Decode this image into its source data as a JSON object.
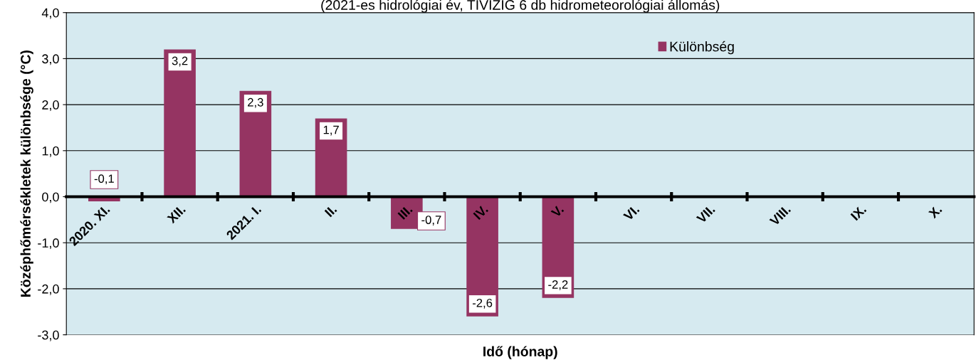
{
  "chart_data": {
    "type": "bar",
    "title": "(2021-es hidrológiai év, TIVIZIG 6 db hidrometeorológiai állomás)",
    "xlabel": "Idő (hónap)",
    "ylabel": "Középhőmérsékletek különbsége (°C)",
    "categories": [
      "2020. XI.",
      "XII.",
      "2021. I.",
      "II.",
      "III.",
      "IV.",
      "V.",
      "VI.",
      "VII.",
      "VIII.",
      "IX.",
      "X."
    ],
    "series": [
      {
        "name": "Különbség",
        "color": "#953462",
        "values": [
          -0.1,
          3.2,
          2.3,
          1.7,
          -0.7,
          -2.6,
          -2.2,
          null,
          null,
          null,
          null,
          null
        ],
        "value_labels": [
          "-0,1",
          "3,2",
          "2,3",
          "1,7",
          "-0,7",
          "-2,6",
          "-2,2",
          null,
          null,
          null,
          null,
          null
        ]
      }
    ],
    "ylim": [
      -3,
      4
    ],
    "yticks": [
      {
        "value": -3,
        "label": "-3,0"
      },
      {
        "value": -2,
        "label": "-2,0"
      },
      {
        "value": -1,
        "label": "-1,0"
      },
      {
        "value": 0,
        "label": "0,0"
      },
      {
        "value": 1,
        "label": "1,0"
      },
      {
        "value": 2,
        "label": "2,0"
      },
      {
        "value": 3,
        "label": "3,0"
      },
      {
        "value": 4,
        "label": "4,0"
      }
    ],
    "grid": "y",
    "legend": "top right"
  }
}
